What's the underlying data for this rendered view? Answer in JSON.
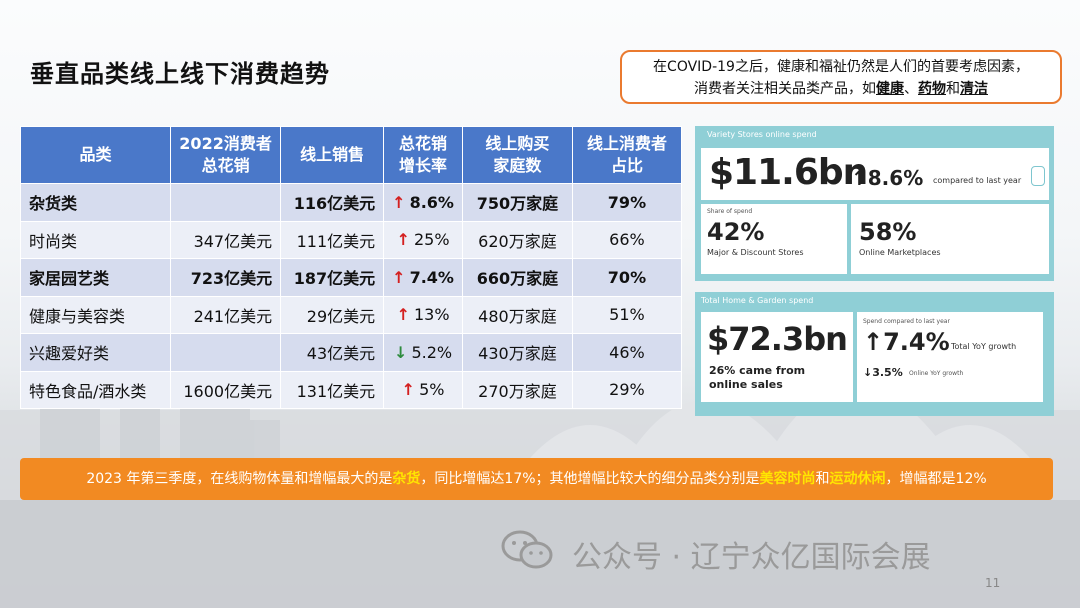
{
  "title": "垂直品类线上线下消费趋势",
  "note": {
    "line1": "在COVID-19之后，健康和福祉仍然是人们的首要考虑因素，",
    "line2_prefix": "消费者关注相关品类产品，如",
    "k1": "健康",
    "sep1": "、",
    "k2": "药物",
    "sep2": "和",
    "k3": "清洁"
  },
  "table": {
    "headers": [
      {
        "l1": "品类",
        "l2": ""
      },
      {
        "l1": "2022消费者",
        "l2": "总花销"
      },
      {
        "l1": "线上销售",
        "l2": ""
      },
      {
        "l1": "总花销",
        "l2": "增长率"
      },
      {
        "l1": "线上购买",
        "l2": "家庭数"
      },
      {
        "l1": "线上消费者",
        "l2": "占比"
      }
    ],
    "rows": [
      {
        "cat": "杂货类",
        "total": "",
        "online": "116亿美元",
        "dir": "up",
        "arrow": "↑",
        "growth": "8.6%",
        "households": "750万家庭",
        "share": "79%",
        "bold": true
      },
      {
        "cat": "时尚类",
        "total": "347亿美元",
        "online": "111亿美元",
        "dir": "up",
        "arrow": "↑",
        "growth": "25%",
        "households": "620万家庭",
        "share": "66%",
        "bold": false
      },
      {
        "cat": "家居园艺类",
        "total": "723亿美元",
        "online": "187亿美元",
        "dir": "up",
        "arrow": "↑",
        "growth": "7.4%",
        "households": "660万家庭",
        "share": "70%",
        "bold": true
      },
      {
        "cat": "健康与美容类",
        "total": "241亿美元",
        "online": "29亿美元",
        "dir": "up",
        "arrow": "↑",
        "growth": "13%",
        "households": "480万家庭",
        "share": "51%",
        "bold": false
      },
      {
        "cat": "兴趣爱好类",
        "total": "",
        "online": "43亿美元",
        "dir": "down",
        "arrow": "↓",
        "growth": "5.2%",
        "households": "430万家庭",
        "share": "46%",
        "bold": false
      },
      {
        "cat": "特色食品/酒水类",
        "total": "1600亿美元",
        "online": "131亿美元",
        "dir": "up",
        "arrow": "↑",
        "growth": "5%",
        "households": "270万家庭",
        "share": "29%",
        "bold": false
      }
    ]
  },
  "card1": {
    "label": "Variety Stores online spend",
    "amount": "$11.6bn",
    "change": "↑8.6%",
    "compare": "compared to last year",
    "share_label": "Share of spend",
    "stat1_value": "42%",
    "stat1_label": "Major & Discount Stores",
    "stat2_value": "58%",
    "stat2_label": "Online Marketplaces"
  },
  "card2": {
    "label": "Total Home & Garden spend",
    "amount": "$72.3bn",
    "came_from_1": "26% came from",
    "came_from_2": "online sales",
    "spend_label": "Spend compared to last year",
    "total_change": "↑7.4%",
    "total_label": "Total YoY growth",
    "online_change": "↓3.5%",
    "online_label": "Online YoY growth"
  },
  "banner": {
    "p1": "2023 年第三季度，在线购物体量和增幅最大的是",
    "h1": "杂货",
    "p2": "，同比增幅达17%；其他增幅比较大的细分品类分别是",
    "h2": "美容时尚",
    "p3": "和",
    "h3": "运动休闲",
    "p4": "，增幅都是12%"
  },
  "watermark": "公众号 · 辽宁众亿国际会展",
  "page_number": "11"
}
